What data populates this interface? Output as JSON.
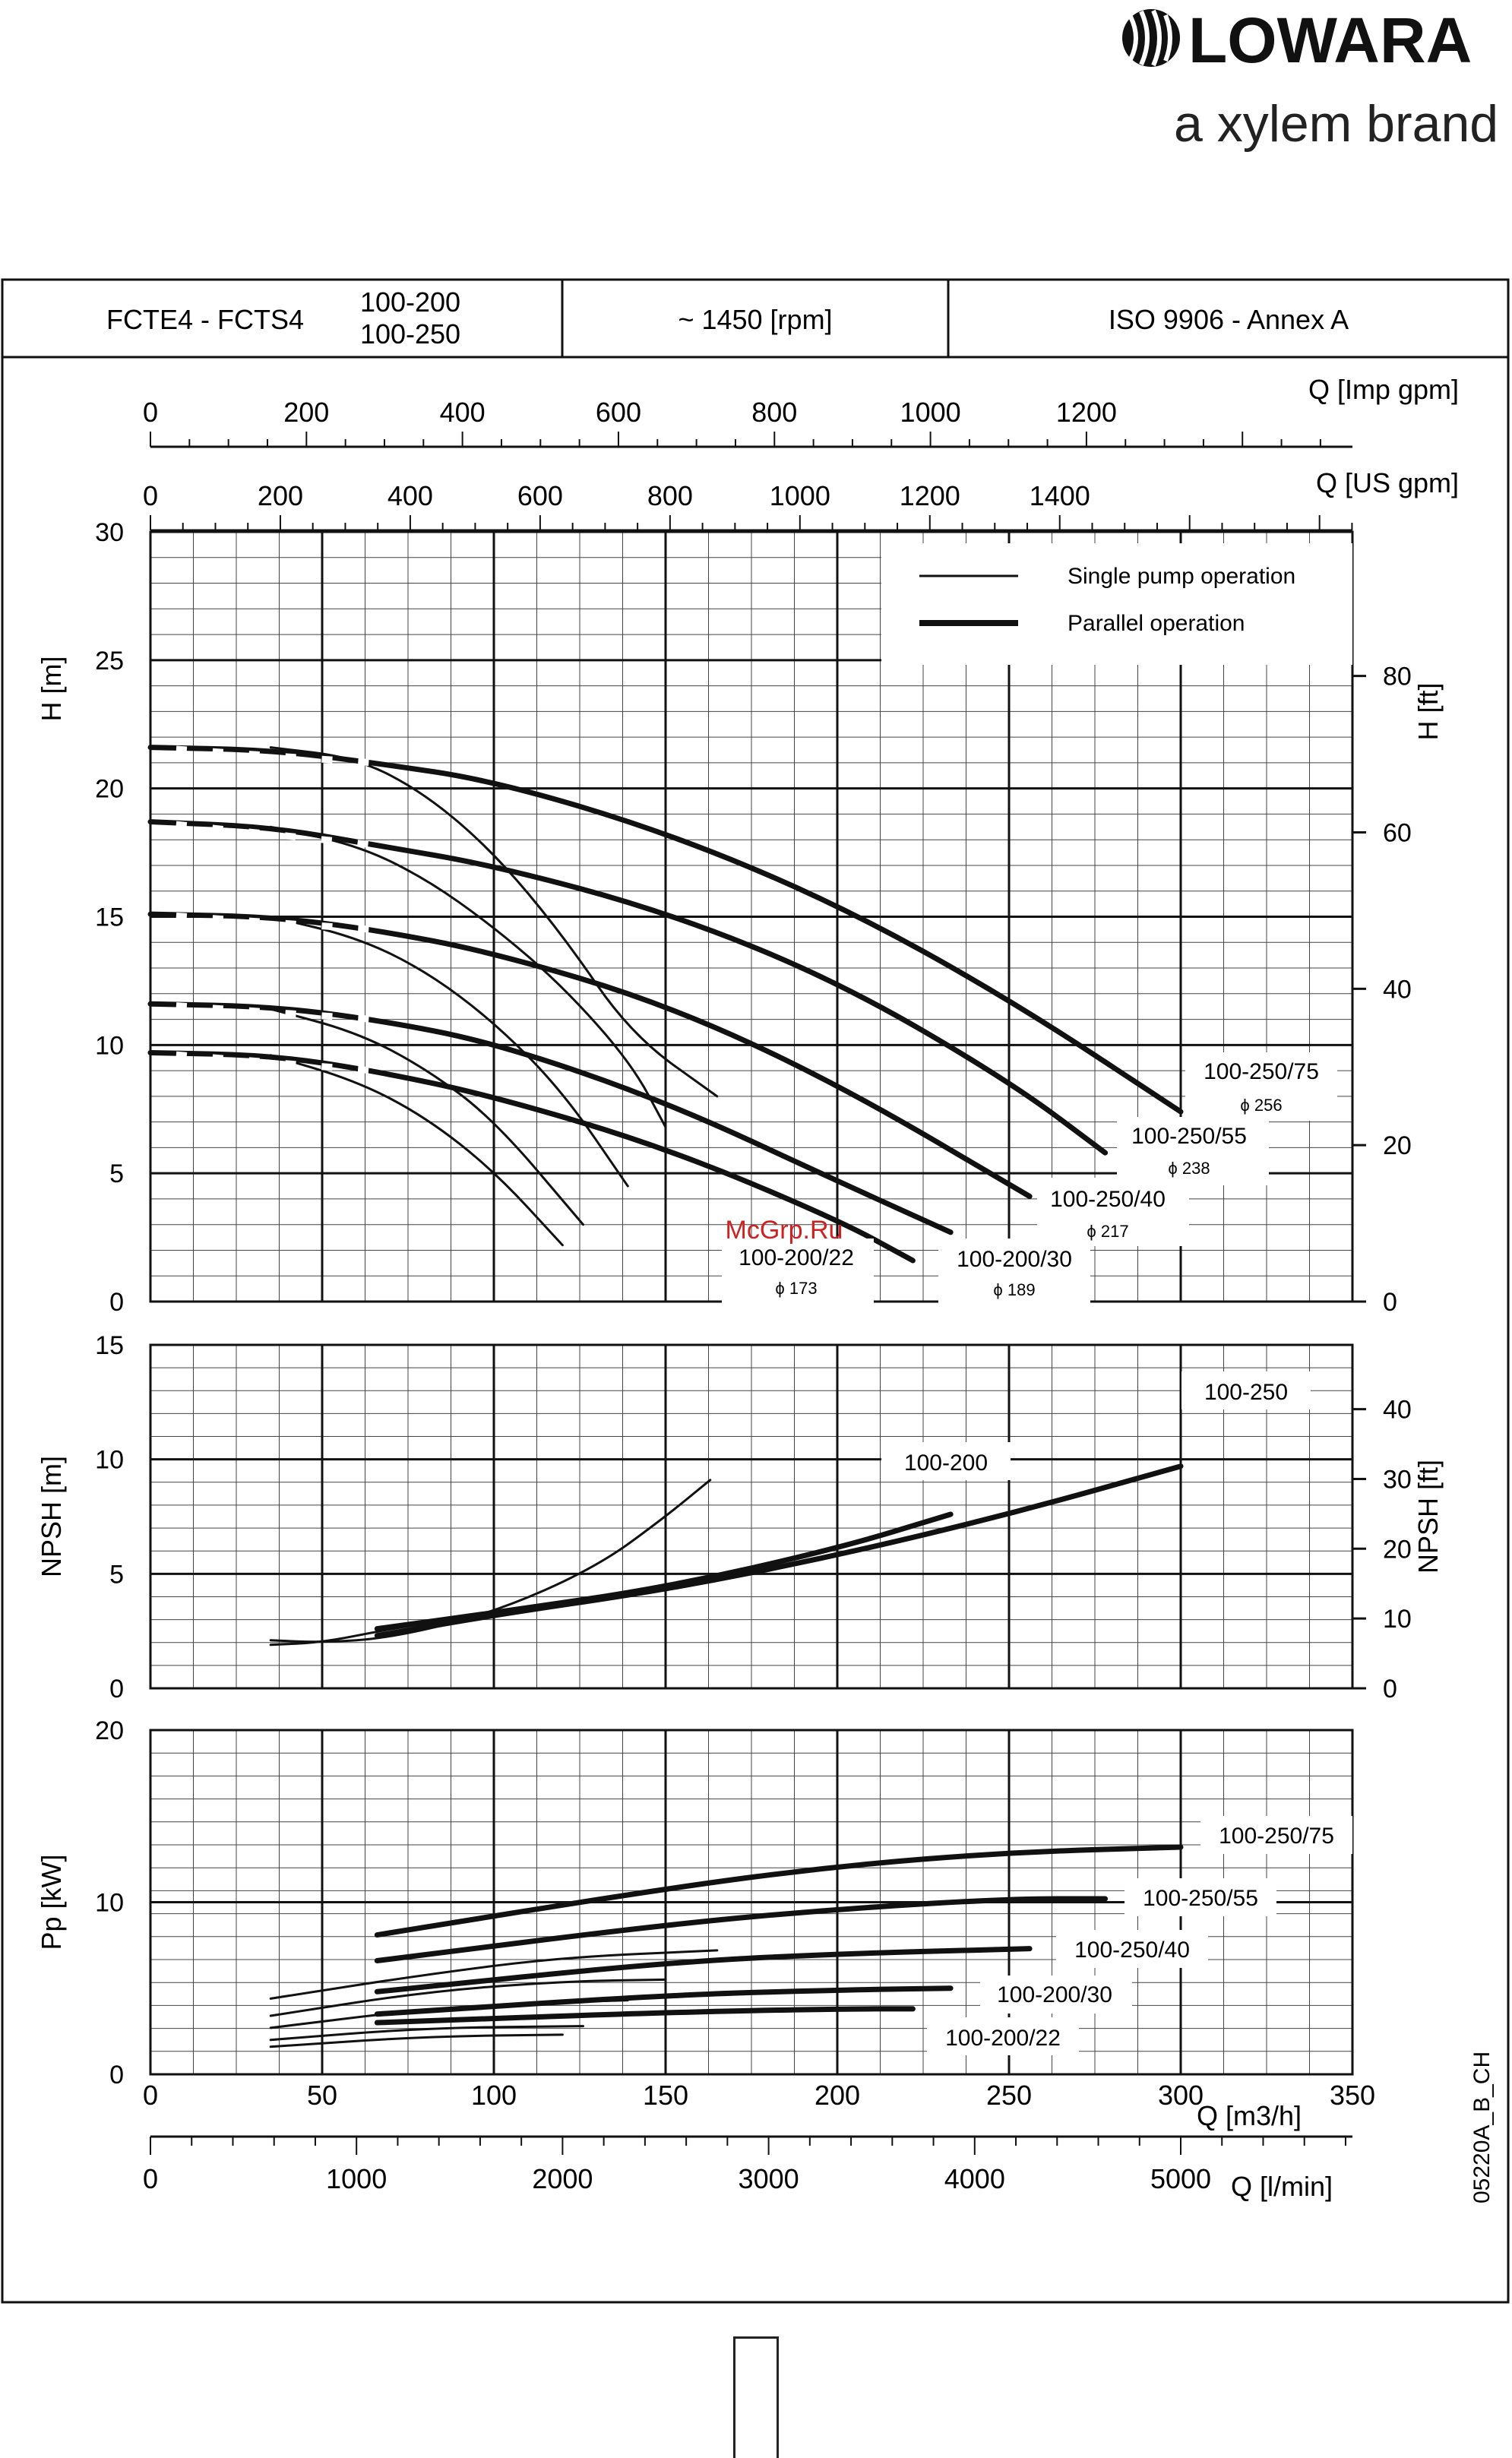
{
  "brand": {
    "name": "LOWARA",
    "tagline": "a xylem brand"
  },
  "header": {
    "model": "FCTE4 - FCTS4",
    "variant_a": "100-200",
    "variant_b": "100-250",
    "speed": "~ 1450 [rpm]",
    "standard": "ISO 9906 - Annex A"
  },
  "watermark": "McGrp.Ru",
  "drawing_code": "05220A_B_CH",
  "legend": {
    "single": "Single pump operation",
    "parallel": "Parallel operation"
  },
  "colors": {
    "ink": "#111111",
    "grid": "#333333",
    "watermark": "#cc2222"
  },
  "chart_data": [
    {
      "type": "line",
      "title": "",
      "ylabel": "H [m]",
      "ylabel_right": "H [ft]",
      "xlabel": "Q [m3/h]",
      "xlim": [
        0,
        350
      ],
      "ylim": [
        0,
        30
      ],
      "yticks": [
        0,
        5,
        10,
        15,
        20,
        25,
        30
      ],
      "yticks_right": [
        0,
        20,
        40,
        60,
        80
      ],
      "top_axes": [
        {
          "label": "Q [Imp gpm]",
          "ticks": [
            0,
            200,
            400,
            600,
            800,
            1000,
            1200
          ]
        },
        {
          "label": "Q [US gpm]",
          "ticks": [
            0,
            200,
            400,
            600,
            800,
            1000,
            1200,
            1400
          ]
        }
      ],
      "series": [
        {
          "name": "100-250/75",
          "sub": "ϕ 256",
          "style": "single",
          "x": [
            35,
            60,
            80,
            100,
            120,
            140,
            165
          ],
          "y": [
            21.6,
            21.2,
            19.8,
            17.5,
            14.3,
            10.4,
            8.0
          ]
        },
        {
          "name": "100-250/75",
          "style": "parallel",
          "x": [
            0,
            35,
            65,
            100,
            150,
            200,
            250,
            300
          ],
          "y": [
            21.6,
            21.5,
            21.0,
            20.3,
            18.3,
            15.5,
            11.8,
            7.4
          ]
        },
        {
          "name": "100-250/55",
          "sub": "ϕ 238",
          "style": "single",
          "x": [
            35,
            60,
            80,
            100,
            120,
            140,
            150
          ],
          "y": [
            18.5,
            17.8,
            16.5,
            14.6,
            12.3,
            9.3,
            6.8
          ]
        },
        {
          "name": "100-250/55",
          "style": "parallel",
          "x": [
            0,
            35,
            65,
            100,
            150,
            200,
            250,
            278
          ],
          "y": [
            18.7,
            18.5,
            17.8,
            17.0,
            15.2,
            12.5,
            8.6,
            5.8
          ]
        },
        {
          "name": "100-250/40",
          "sub": "ϕ 217",
          "style": "single",
          "x": [
            35,
            60,
            80,
            100,
            120,
            139
          ],
          "y": [
            15.0,
            14.2,
            12.9,
            10.9,
            8.2,
            4.5
          ]
        },
        {
          "name": "100-250/40",
          "style": "parallel",
          "x": [
            0,
            35,
            65,
            100,
            150,
            200,
            256
          ],
          "y": [
            15.1,
            15.0,
            14.5,
            13.6,
            11.6,
            8.5,
            4.1
          ]
        },
        {
          "name": "100-200/30",
          "sub": "ϕ 189",
          "style": "single",
          "x": [
            35,
            60,
            80,
            100,
            126
          ],
          "y": [
            11.4,
            10.5,
            9.1,
            7.1,
            3.0
          ]
        },
        {
          "name": "100-200/30",
          "style": "parallel",
          "x": [
            0,
            35,
            65,
            100,
            150,
            200,
            233
          ],
          "y": [
            11.6,
            11.5,
            11.0,
            10.1,
            7.8,
            4.7,
            2.7
          ]
        },
        {
          "name": "100-200/22",
          "sub": "ϕ 173",
          "style": "single",
          "x": [
            35,
            60,
            80,
            100,
            120
          ],
          "y": [
            9.6,
            8.6,
            7.2,
            5.1,
            2.2
          ]
        },
        {
          "name": "100-200/22",
          "style": "parallel",
          "x": [
            0,
            35,
            65,
            100,
            150,
            200,
            222
          ],
          "y": [
            9.7,
            9.6,
            9.0,
            8.0,
            6.0,
            3.2,
            1.6
          ]
        }
      ]
    },
    {
      "type": "line",
      "ylabel": "NPSH [m]",
      "ylabel_right": "NPSH [ft]",
      "xlim": [
        0,
        350
      ],
      "ylim": [
        0,
        15
      ],
      "yticks": [
        0,
        5,
        10,
        15
      ],
      "yticks_right": [
        0,
        10,
        20,
        30,
        40
      ],
      "series": [
        {
          "name": "100-200",
          "style": "single",
          "x": [
            35,
            50,
            70,
            100,
            130,
            150,
            163
          ],
          "y": [
            2.1,
            2.0,
            2.2,
            3.3,
            5.3,
            7.5,
            9.1
          ]
        },
        {
          "name": "100-200",
          "style": "single",
          "x": [
            35,
            50,
            70,
            100
          ],
          "y": [
            1.9,
            2.0,
            2.6,
            3.3
          ]
        },
        {
          "name": "100-200",
          "style": "parallel",
          "x": [
            66,
            100,
            150,
            200,
            233
          ],
          "y": [
            2.6,
            3.3,
            4.4,
            6.1,
            7.6
          ]
        },
        {
          "name": "100-250",
          "style": "parallel",
          "x": [
            66,
            100,
            150,
            200,
            250,
            300
          ],
          "y": [
            2.3,
            3.2,
            4.3,
            5.8,
            7.6,
            9.7
          ]
        }
      ]
    },
    {
      "type": "line",
      "ylabel": "Pp [kW]",
      "xlabel": "Q [m3/h]",
      "xlabel_bottom": "Q [l/min]",
      "xlim": [
        0,
        350
      ],
      "ylim": [
        0,
        20
      ],
      "xticks": [
        0,
        50,
        100,
        150,
        200,
        250,
        300,
        350
      ],
      "xticks_bottom": [
        0,
        1000,
        2000,
        3000,
        4000,
        5000
      ],
      "yticks": [
        0,
        10,
        20
      ],
      "series": [
        {
          "name": "100-250/75",
          "style": "single",
          "x": [
            35,
            80,
            120,
            165
          ],
          "y": [
            4.4,
            5.8,
            6.8,
            7.2
          ]
        },
        {
          "name": "100-250/75",
          "style": "parallel",
          "x": [
            66,
            150,
            200,
            250,
            300
          ],
          "y": [
            8.1,
            10.8,
            12.1,
            12.9,
            13.2
          ]
        },
        {
          "name": "100-250/55",
          "style": "single",
          "x": [
            35,
            80,
            120,
            150
          ],
          "y": [
            3.4,
            4.8,
            5.4,
            5.5
          ]
        },
        {
          "name": "100-250/55",
          "style": "parallel",
          "x": [
            66,
            150,
            200,
            250,
            278
          ],
          "y": [
            6.6,
            8.7,
            9.6,
            10.2,
            10.2
          ]
        },
        {
          "name": "100-250/40",
          "style": "single",
          "x": [
            35,
            80,
            120,
            139
          ],
          "y": [
            2.7,
            3.8,
            4.2,
            4.3
          ]
        },
        {
          "name": "100-250/40",
          "style": "parallel",
          "x": [
            66,
            150,
            200,
            256
          ],
          "y": [
            4.8,
            6.5,
            7.0,
            7.3
          ]
        },
        {
          "name": "100-200/30",
          "style": "single",
          "x": [
            35,
            80,
            126
          ],
          "y": [
            2.0,
            2.7,
            2.8
          ]
        },
        {
          "name": "100-200/30",
          "style": "parallel",
          "x": [
            66,
            150,
            200,
            233
          ],
          "y": [
            3.5,
            4.6,
            4.9,
            5.0
          ]
        },
        {
          "name": "100-200/22",
          "style": "single",
          "x": [
            35,
            80,
            120
          ],
          "y": [
            1.6,
            2.2,
            2.3
          ]
        },
        {
          "name": "100-200/22",
          "style": "parallel",
          "x": [
            66,
            150,
            200,
            222
          ],
          "y": [
            3.0,
            3.6,
            3.8,
            3.8
          ]
        }
      ]
    }
  ]
}
